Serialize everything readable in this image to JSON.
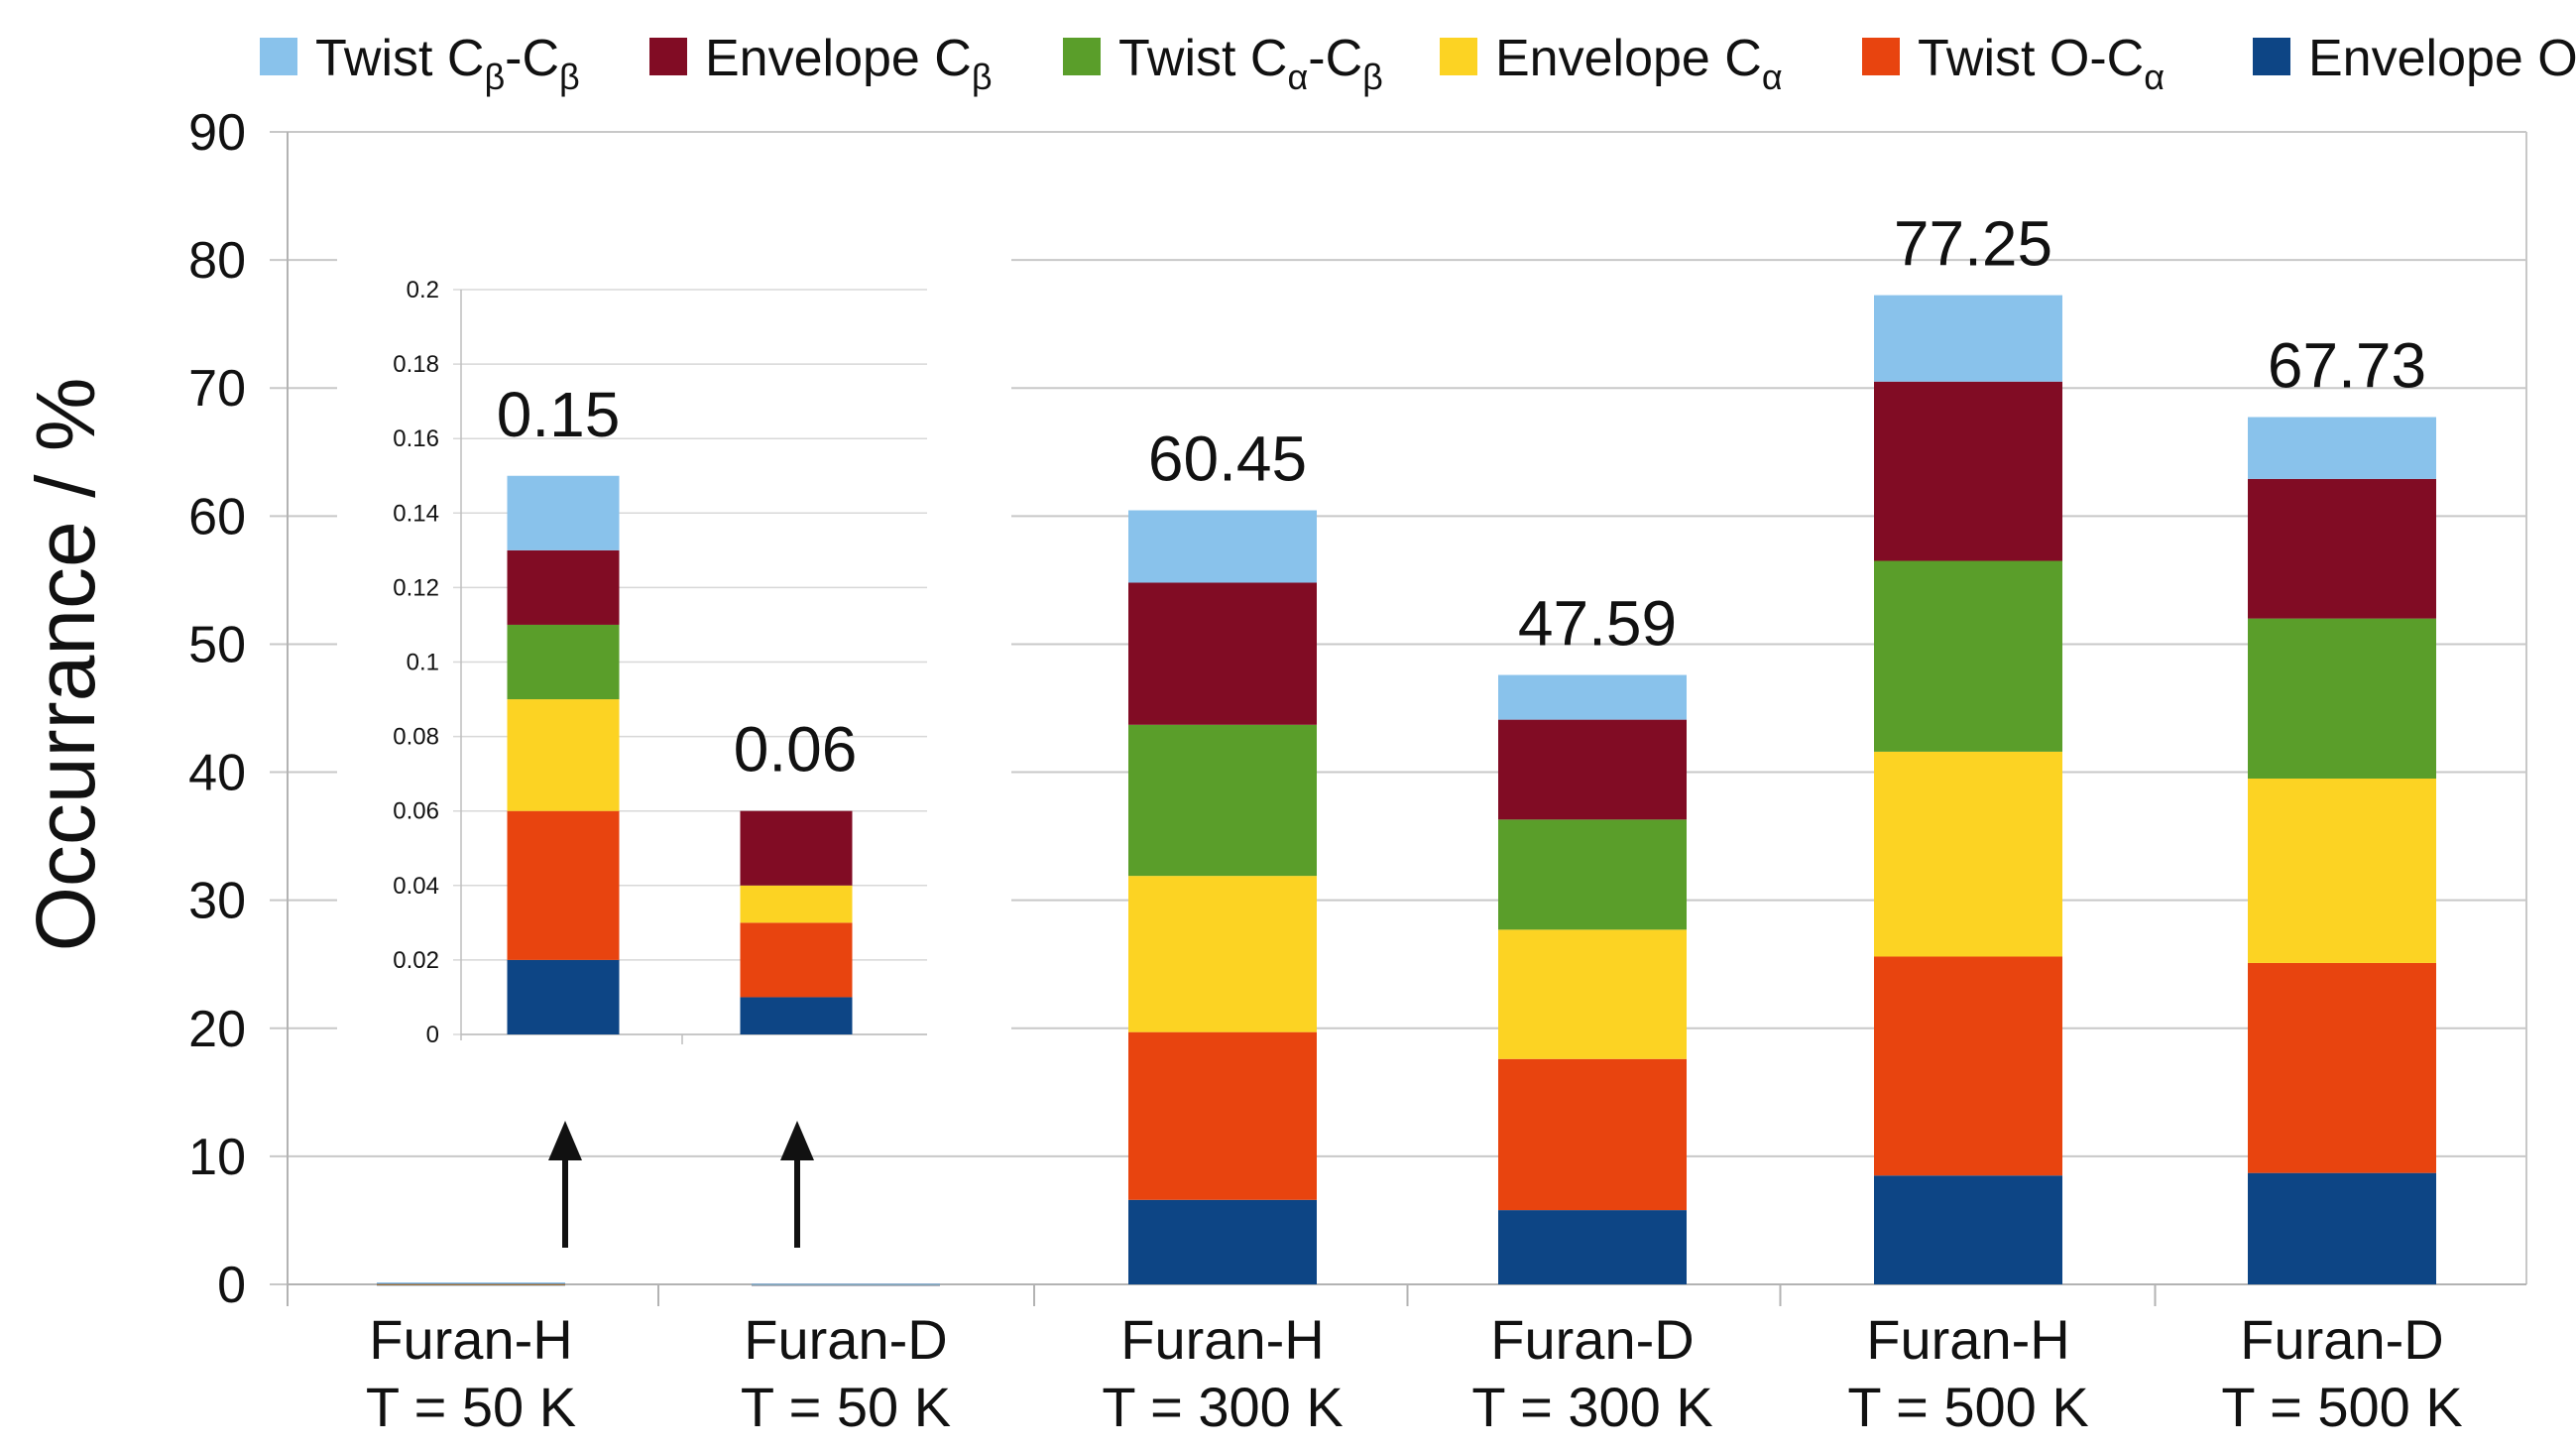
{
  "chart_data": {
    "type": "bar",
    "stacked": true,
    "title": "",
    "ylabel": "Occurrance / %",
    "ylim": [
      0,
      90
    ],
    "y_ticks": [
      "0",
      "10",
      "20",
      "30",
      "40",
      "50",
      "60",
      "70",
      "80",
      "90"
    ],
    "grid": true,
    "legend_position": "top",
    "categories": [
      {
        "line1": "Furan-H",
        "line2": "T = 50 K"
      },
      {
        "line1": "Furan-D",
        "line2": "T = 50 K"
      },
      {
        "line1": "Furan-H",
        "line2": "T = 300 K"
      },
      {
        "line1": "Furan-D",
        "line2": "T = 300 K"
      },
      {
        "line1": "Furan-H",
        "line2": "T = 500 K"
      },
      {
        "line1": "Furan-D",
        "line2": "T = 500 K"
      }
    ],
    "series": [
      {
        "name": "Envelope O",
        "base": "Envelope O",
        "sub": "",
        "color": "#0d4585",
        "values": [
          0.02,
          0.01,
          6.6,
          5.8,
          8.5,
          8.7
        ]
      },
      {
        "name": "Twist O-Cα",
        "base": "Twist O-C",
        "sub": "α",
        "color": "#e8440f",
        "values": [
          0.04,
          0.02,
          13.1,
          11.8,
          17.1,
          16.4
        ]
      },
      {
        "name": "Envelope Cα",
        "base": "Envelope C",
        "sub": "α",
        "color": "#fcd323",
        "values": [
          0.03,
          0.01,
          12.2,
          10.1,
          16.0,
          14.4
        ]
      },
      {
        "name": "Twist Cα-Cβ",
        "base": "Twist C",
        "sub": "α",
        "base2": "-C",
        "sub2": "β",
        "color": "#5a9e2a",
        "values": [
          0.02,
          0.0,
          11.8,
          8.6,
          14.9,
          12.5
        ]
      },
      {
        "name": "Envelope Cβ",
        "base": "Envelope C",
        "sub": "β",
        "color": "#810c24",
        "values": [
          0.02,
          0.02,
          11.1,
          7.8,
          14.0,
          10.9
        ]
      },
      {
        "name": "Twist Cβ-Cβ",
        "base": "Twist C",
        "sub": "β",
        "base2": "-C",
        "sub2": "β",
        "color": "#89c2eb",
        "values": [
          0.02,
          0.0,
          5.65,
          3.49,
          6.75,
          4.83
        ]
      }
    ],
    "totals": [
      "0.15",
      "0.06",
      "60.45",
      "47.59",
      "77.25",
      "67.73"
    ],
    "legend_order": [
      "Twist Cβ-Cβ",
      "Envelope Cβ",
      "Twist Cα-Cβ",
      "Envelope Cα",
      "Twist O-Cα",
      "Envelope O"
    ],
    "inset": {
      "ylim": [
        0,
        0.2
      ],
      "y_ticks": [
        "0",
        "0.02",
        "0.04",
        "0.06",
        "0.08",
        "0.1",
        "0.12",
        "0.14",
        "0.16",
        "0.18",
        "0.2"
      ],
      "categories_index": [
        0,
        1
      ],
      "totals": [
        "0.15",
        "0.06"
      ]
    }
  }
}
